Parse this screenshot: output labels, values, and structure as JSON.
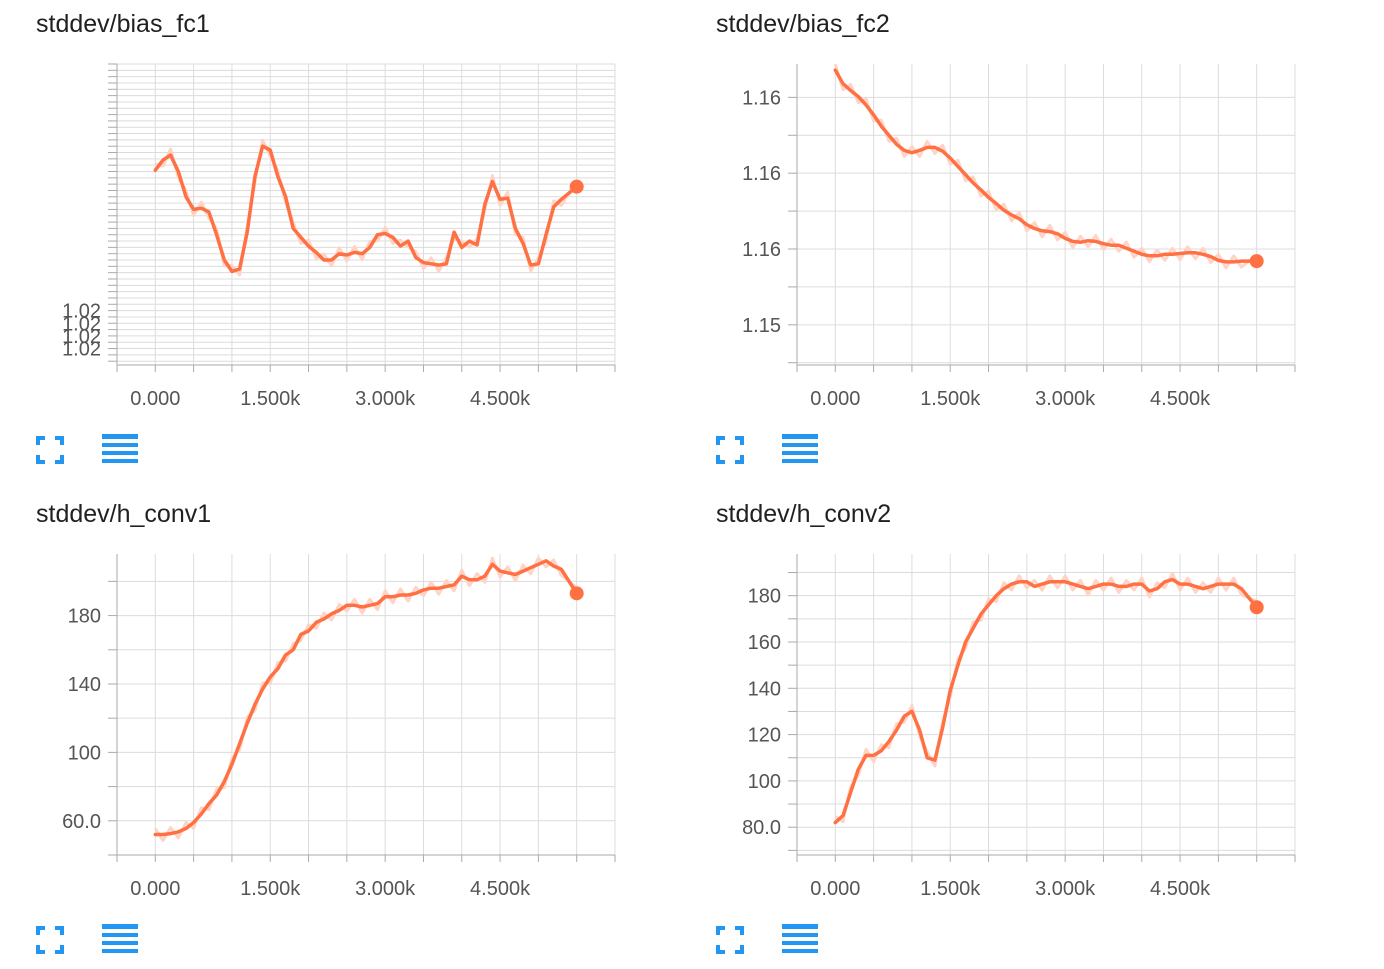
{
  "colors": {
    "line": "#ff7043",
    "line_raw": "#ffd4c6",
    "grid": "#dcdcdc",
    "axis": "#aaaaaa",
    "icon": "#2196f3"
  },
  "icons": {
    "expand": "fullscreen-icon",
    "data": "data-table-icon"
  },
  "chart_data": [
    {
      "type": "line",
      "title": "stddev/bias_fc1",
      "x_tick_labels": [
        "0.000",
        "1.500k",
        "3.000k",
        "4.500k"
      ],
      "y_tick_labels": [
        "1.02",
        "1.02",
        "1.02",
        "1.02"
      ],
      "y_tick_values": [
        1.0202,
        1.0201,
        1.02,
        1.0199
      ],
      "xlim": [
        -500,
        6000
      ],
      "ylim": [
        1.01977,
        1.02215
      ],
      "series": [
        {
          "x": [
            0,
            100,
            200,
            300,
            400,
            500,
            600,
            700,
            800,
            900,
            1000,
            1100,
            1200,
            1300,
            1400,
            1500,
            1600,
            1700,
            1800,
            1900,
            2000,
            2100,
            2200,
            2300,
            2400,
            2500,
            2600,
            2700,
            2800,
            2900,
            3000,
            3100,
            3200,
            3300,
            3400,
            3500,
            3600,
            3700,
            3800,
            3900,
            4000,
            4100,
            4200,
            4300,
            4400,
            4500,
            4600,
            4700,
            4800,
            4900,
            5000,
            5100,
            5200,
            5300,
            5500
          ],
          "y": [
            1.02131,
            1.02139,
            1.02143,
            1.0213,
            1.0211,
            1.021,
            1.02101,
            1.02098,
            1.0208,
            1.0206,
            1.02051,
            1.02053,
            1.02082,
            1.02126,
            1.0215,
            1.02147,
            1.02126,
            1.0211,
            1.02085,
            1.02078,
            1.02071,
            1.02066,
            1.0206,
            1.0206,
            1.02065,
            1.02064,
            1.02066,
            1.02065,
            1.0207,
            1.0208,
            1.02081,
            1.02078,
            1.02071,
            1.02075,
            1.02062,
            1.02058,
            1.02057,
            1.02056,
            1.02057,
            1.02082,
            1.0207,
            1.02075,
            1.02072,
            1.02104,
            1.02122,
            1.02108,
            1.02109,
            1.02085,
            1.02073,
            1.02056,
            1.02057,
            1.0208,
            1.02102,
            1.02108,
            1.02118
          ]
        }
      ]
    },
    {
      "type": "line",
      "title": "stddev/bias_fc2",
      "x_tick_labels": [
        "0.000",
        "1.500k",
        "3.000k",
        "4.500k"
      ],
      "y_tick_labels": [
        "1.16",
        "1.16",
        "1.16",
        "1.15"
      ],
      "y_tick_values": [
        1.1561,
        1.1551,
        1.1541,
        1.1531
      ],
      "xlim": [
        -500,
        6000
      ],
      "ylim": [
        1.15257,
        1.15654
      ],
      "series": [
        {
          "x": [
            0,
            100,
            200,
            300,
            400,
            500,
            600,
            700,
            800,
            900,
            1000,
            1100,
            1200,
            1300,
            1400,
            1500,
            1600,
            1700,
            1800,
            1900,
            2000,
            2100,
            2200,
            2300,
            2400,
            2500,
            2600,
            2700,
            2800,
            2900,
            3000,
            3100,
            3200,
            3300,
            3400,
            3500,
            3600,
            3700,
            3800,
            3900,
            4000,
            4100,
            4200,
            4300,
            4400,
            4500,
            4600,
            4700,
            4800,
            4900,
            5000,
            5100,
            5200,
            5300,
            5500
          ],
          "y": [
            1.15646,
            1.15628,
            1.15619,
            1.15611,
            1.156,
            1.15587,
            1.15572,
            1.1556,
            1.15548,
            1.1554,
            1.15537,
            1.1554,
            1.15544,
            1.15544,
            1.15539,
            1.1553,
            1.15519,
            1.15508,
            1.15497,
            1.15488,
            1.15478,
            1.1547,
            1.15461,
            1.15455,
            1.1545,
            1.15442,
            1.15437,
            1.15434,
            1.15433,
            1.1543,
            1.15424,
            1.1542,
            1.15419,
            1.15421,
            1.1542,
            1.15417,
            1.15415,
            1.15415,
            1.15411,
            1.15407,
            1.15403,
            1.15401,
            1.15401,
            1.15403,
            1.15403,
            1.15404,
            1.15405,
            1.15405,
            1.15403,
            1.154,
            1.15395,
            1.15393,
            1.15393,
            1.15394,
            1.15394
          ]
        }
      ]
    },
    {
      "type": "line",
      "title": "stddev/h_conv1",
      "x_tick_labels": [
        "0.000",
        "1.500k",
        "3.000k",
        "4.500k"
      ],
      "y_tick_labels": [
        "60.0",
        "100",
        "140",
        "180"
      ],
      "y_tick_values": [
        60,
        100,
        140,
        180
      ],
      "xlim": [
        -500,
        6000
      ],
      "ylim": [
        40,
        216
      ],
      "series": [
        {
          "x": [
            0,
            100,
            200,
            300,
            400,
            500,
            600,
            700,
            800,
            900,
            1000,
            1100,
            1200,
            1300,
            1400,
            1500,
            1600,
            1700,
            1800,
            1900,
            2000,
            2100,
            2200,
            2300,
            2400,
            2500,
            2600,
            2700,
            2800,
            2900,
            3000,
            3100,
            3200,
            3300,
            3400,
            3500,
            3600,
            3700,
            3800,
            3900,
            4000,
            4100,
            4200,
            4300,
            4400,
            4500,
            4600,
            4700,
            4800,
            4900,
            5000,
            5100,
            5200,
            5300,
            5500
          ],
          "y": [
            52,
            52,
            52.5,
            53.5,
            55.5,
            59,
            64,
            70,
            75,
            83,
            93,
            105,
            117,
            128,
            137,
            144,
            149,
            157,
            160,
            169,
            171,
            176,
            178,
            181,
            183,
            186,
            186,
            185,
            186,
            187,
            191,
            191,
            192,
            192,
            193,
            195,
            196,
            196,
            197,
            198,
            203,
            201,
            201,
            203,
            210,
            206,
            205,
            204,
            206,
            208,
            210,
            212,
            209,
            207,
            193
          ]
        }
      ]
    },
    {
      "type": "line",
      "title": "stddev/h_conv2",
      "x_tick_labels": [
        "0.000",
        "1.500k",
        "3.000k",
        "4.500k"
      ],
      "y_tick_labels": [
        "80.0",
        "100",
        "120",
        "140",
        "160",
        "180"
      ],
      "y_tick_values": [
        80,
        100,
        120,
        140,
        160,
        180
      ],
      "xlim": [
        -500,
        6000
      ],
      "ylim": [
        68,
        198
      ],
      "series": [
        {
          "x": [
            0,
            100,
            200,
            300,
            400,
            500,
            600,
            700,
            800,
            900,
            1000,
            1100,
            1200,
            1300,
            1400,
            1500,
            1600,
            1700,
            1800,
            1900,
            2000,
            2100,
            2200,
            2300,
            2400,
            2500,
            2600,
            2700,
            2800,
            2900,
            3000,
            3100,
            3200,
            3300,
            3400,
            3500,
            3600,
            3700,
            3800,
            3900,
            4000,
            4100,
            4200,
            4300,
            4400,
            4500,
            4600,
            4700,
            4800,
            4900,
            5000,
            5100,
            5200,
            5300,
            5500
          ],
          "y": [
            82,
            85,
            95,
            105,
            111,
            111,
            113,
            117,
            122,
            128,
            130,
            122,
            110,
            109,
            123,
            139,
            150,
            160,
            166,
            172,
            176,
            180,
            183,
            185,
            186,
            186,
            184,
            185,
            186,
            186,
            186,
            185,
            184,
            183,
            184,
            185,
            185,
            184,
            184,
            185,
            185,
            182,
            183,
            186,
            187,
            185,
            185,
            184,
            183,
            184,
            185,
            185,
            185,
            183,
            175
          ]
        }
      ]
    }
  ]
}
